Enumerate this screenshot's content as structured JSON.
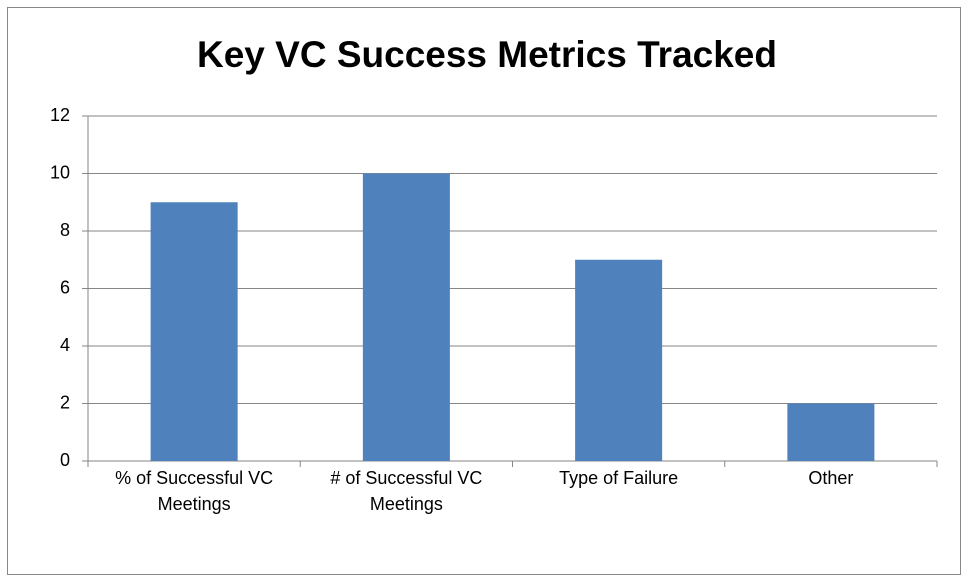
{
  "chart_data": {
    "type": "bar",
    "title": "Key VC Success Metrics Tracked",
    "categories": [
      "% of Successful VC Meetings",
      "# of Successful VC Meetings",
      "Type of Failure",
      "Other"
    ],
    "values": [
      9,
      10,
      7,
      2
    ],
    "color": "#4f81bd",
    "ylim": [
      0,
      12
    ],
    "yticks": [
      0,
      2,
      4,
      6,
      8,
      10,
      12
    ],
    "grid": true
  }
}
